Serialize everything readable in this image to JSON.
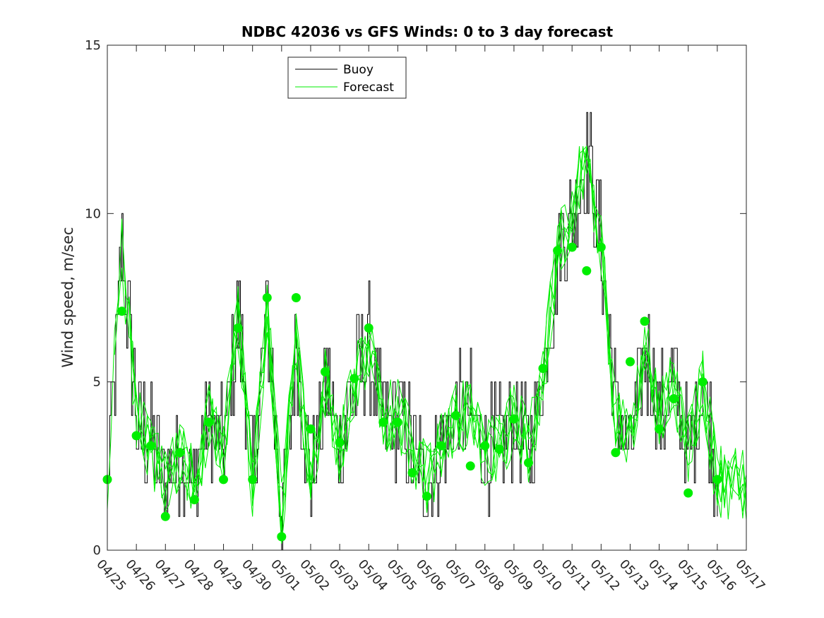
{
  "chart_data": {
    "type": "line",
    "title": "NDBC 42036 vs GFS Winds: 0 to 3 day forecast",
    "xlabel": "",
    "ylabel": "Wind speed, m/sec",
    "ylim": [
      0,
      15
    ],
    "yticks": [
      0,
      5,
      10,
      15
    ],
    "xlim_days": [
      0,
      22
    ],
    "xtick_labels": [
      "04/25",
      "04/26",
      "04/27",
      "04/28",
      "04/29",
      "04/30",
      "05/01",
      "05/02",
      "05/03",
      "05/04",
      "05/05",
      "05/06",
      "05/07",
      "05/08",
      "05/09",
      "05/10",
      "05/11",
      "05/12",
      "05/13",
      "05/14",
      "05/15",
      "05/16",
      "05/17"
    ],
    "legend": {
      "placement": "top-left",
      "entries": [
        "Buoy",
        "Forecast"
      ]
    },
    "colors": {
      "buoy": "#000000",
      "forecast": "#00ee00",
      "marker": "#00ee00"
    },
    "buoy_daily_anchor_points": {
      "dates": [
        "04/25",
        "04/25 12h",
        "04/26",
        "04/26 12h",
        "04/27",
        "04/27 12h",
        "04/28",
        "04/28 12h",
        "04/29",
        "04/29 12h",
        "04/30",
        "04/30 12h",
        "05/01",
        "05/01 12h",
        "05/02",
        "05/02 12h",
        "05/03",
        "05/03 12h",
        "05/04",
        "05/04 12h",
        "05/05",
        "05/05 12h",
        "05/06",
        "05/06 12h",
        "05/07",
        "05/07 12h",
        "05/08",
        "05/08 12h",
        "05/09",
        "05/09 12h",
        "05/10",
        "05/10 12h",
        "05/11",
        "05/11 12h",
        "05/12",
        "05/12 12h",
        "05/13",
        "05/13 12h",
        "05/14",
        "05/14 12h",
        "05/15",
        "05/15 12h",
        "05/16"
      ],
      "values": [
        2,
        9,
        4,
        3,
        2,
        3,
        2,
        4,
        3,
        7,
        2,
        7,
        1,
        6,
        2,
        5,
        3,
        5,
        6,
        4,
        4,
        3,
        2,
        3,
        4,
        4,
        3,
        3,
        4,
        3,
        5,
        9,
        10,
        12,
        9,
        4,
        3,
        6,
        4,
        5,
        3,
        5,
        2
      ]
    },
    "series": [
      {
        "name": "Forecast",
        "markers": {
          "x": [
            "04/25",
            "04/25 12h",
            "04/26",
            "04/26 12h",
            "04/27",
            "04/27 12h",
            "04/28",
            "04/28 12h",
            "04/29",
            "04/29 12h",
            "04/30",
            "04/30 12h",
            "05/01",
            "05/01 12h",
            "05/02",
            "05/02 12h",
            "05/03",
            "05/03 12h",
            "05/04",
            "05/04 12h",
            "05/05",
            "05/05 12h",
            "05/06",
            "05/06 12h",
            "05/07",
            "05/07 12h",
            "05/08",
            "05/08 12h",
            "05/09",
            "05/09 12h",
            "05/10",
            "05/10 12h",
            "05/11",
            "05/11 12h",
            "05/12",
            "05/12 12h",
            "05/13",
            "05/13 12h",
            "05/14",
            "05/14 12h",
            "05/15",
            "05/15 12h",
            "05/16"
          ],
          "y": [
            2.1,
            7.1,
            3.4,
            3.1,
            1.0,
            2.9,
            1.5,
            3.8,
            2.1,
            6.6,
            2.1,
            7.5,
            0.4,
            7.5,
            3.6,
            5.3,
            3.2,
            5.1,
            6.6,
            3.8,
            3.8,
            2.3,
            1.6,
            3.1,
            4.0,
            2.5,
            3.1,
            3.0,
            3.9,
            2.6,
            5.4,
            8.9,
            9.0,
            8.3,
            9.0,
            2.9,
            5.6,
            6.8,
            3.6,
            4.5,
            1.7,
            5.0,
            2.1
          ]
        }
      }
    ]
  }
}
